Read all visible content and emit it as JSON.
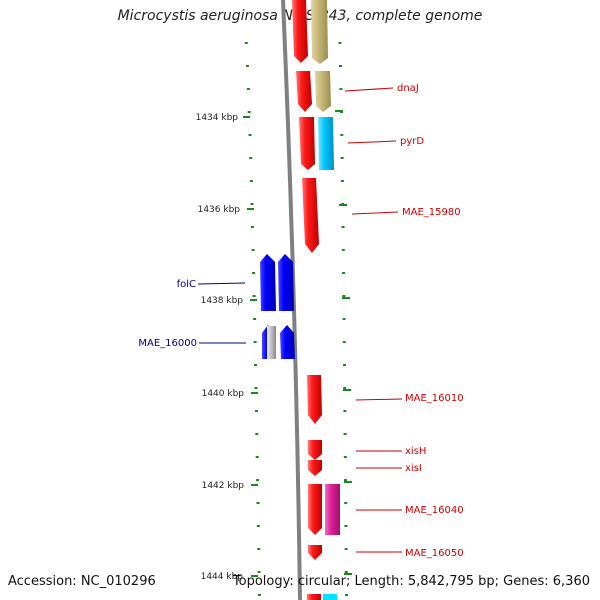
{
  "title": "Microcystis aeruginosa NIES-843, complete genome",
  "footer": {
    "accession": "Accession: NC_010296",
    "summary": "Topology: circular; Length: 5,842,795 bp; Genes: 6,360"
  },
  "colors": {
    "forward_gene": "#ff1a1a",
    "reverse_gene": "#0000ff",
    "tan_feature": "#c8b97a",
    "cyan_feature": "#00c8ff",
    "magenta_feature": "#e0209a",
    "backbone": "#7f7f7f",
    "tick": "#1a8a1a",
    "label_forward": "#cc0000",
    "label_reverse": "#00008b"
  },
  "kbp_ticks": [
    {
      "kbp": 1434,
      "label": "1434 kbp"
    },
    {
      "kbp": 1436,
      "label": "1436 kbp"
    },
    {
      "kbp": 1438,
      "label": "1438 kbp"
    },
    {
      "kbp": 1440,
      "label": "1440 kbp"
    },
    {
      "kbp": 1442,
      "label": "1442 kbp"
    },
    {
      "kbp": 1444,
      "label": "1444 kbp"
    }
  ],
  "gene_labels": [
    {
      "name": "dnaJ",
      "strand": "forward"
    },
    {
      "name": "pyrD",
      "strand": "forward"
    },
    {
      "name": "MAE_15980",
      "strand": "forward"
    },
    {
      "name": "folC",
      "strand": "reverse"
    },
    {
      "name": "MAE_16000",
      "strand": "reverse"
    },
    {
      "name": "MAE_16010",
      "strand": "forward"
    },
    {
      "name": "xisH",
      "strand": "forward"
    },
    {
      "name": "xisI",
      "strand": "forward"
    },
    {
      "name": "MAE_16040",
      "strand": "forward"
    },
    {
      "name": "MAE_16050",
      "strand": "forward"
    }
  ]
}
